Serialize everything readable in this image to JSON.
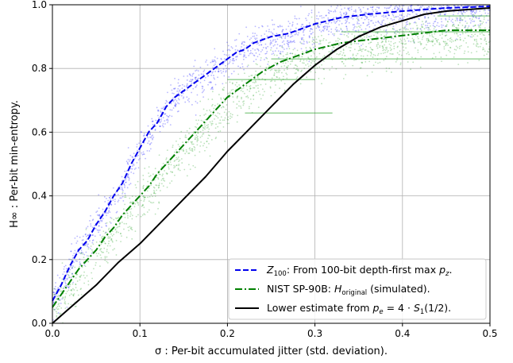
{
  "chart_data": {
    "type": "line",
    "xlabel": "σ : Per-bit accumulated jitter (std. deviation).",
    "ylabel": "H∞ : Per-bit min-entropy.",
    "xlim": [
      0.0,
      0.5
    ],
    "ylim": [
      0.0,
      1.0
    ],
    "x_ticks": [
      "0.0",
      "0.1",
      "0.2",
      "0.3",
      "0.4",
      "0.5"
    ],
    "y_ticks": [
      "0.0",
      "0.2",
      "0.4",
      "0.6",
      "0.8",
      "1.0"
    ],
    "grid": true,
    "legend_position": "lower-right",
    "series": [
      {
        "name": "Z100: From 100-bit depth-first max pz.",
        "color": "#0000ee",
        "style": "dashed",
        "x": [
          0.0,
          0.01,
          0.02,
          0.03,
          0.04,
          0.05,
          0.06,
          0.07,
          0.08,
          0.09,
          0.1,
          0.11,
          0.12,
          0.13,
          0.14,
          0.15,
          0.16,
          0.17,
          0.18,
          0.19,
          0.2,
          0.21,
          0.22,
          0.23,
          0.24,
          0.25,
          0.27,
          0.3,
          0.33,
          0.36,
          0.4,
          0.45,
          0.5
        ],
        "y": [
          0.07,
          0.12,
          0.18,
          0.23,
          0.26,
          0.31,
          0.35,
          0.4,
          0.44,
          0.5,
          0.55,
          0.6,
          0.63,
          0.68,
          0.71,
          0.73,
          0.75,
          0.77,
          0.79,
          0.81,
          0.83,
          0.85,
          0.86,
          0.88,
          0.89,
          0.9,
          0.91,
          0.94,
          0.96,
          0.97,
          0.98,
          0.99,
          0.995
        ]
      },
      {
        "name": "NIST SP-90B: Horiginal (simulated).",
        "color": "#008000",
        "style": "dashdot",
        "x": [
          0.0,
          0.01,
          0.02,
          0.03,
          0.04,
          0.05,
          0.06,
          0.07,
          0.08,
          0.09,
          0.1,
          0.11,
          0.12,
          0.13,
          0.14,
          0.15,
          0.16,
          0.17,
          0.18,
          0.19,
          0.2,
          0.22,
          0.24,
          0.26,
          0.28,
          0.3,
          0.33,
          0.36,
          0.39,
          0.42,
          0.45,
          0.5
        ],
        "y": [
          0.05,
          0.09,
          0.13,
          0.17,
          0.2,
          0.23,
          0.27,
          0.3,
          0.34,
          0.37,
          0.4,
          0.43,
          0.47,
          0.5,
          0.53,
          0.56,
          0.59,
          0.62,
          0.65,
          0.68,
          0.71,
          0.75,
          0.79,
          0.82,
          0.84,
          0.86,
          0.88,
          0.89,
          0.9,
          0.91,
          0.92,
          0.92
        ]
      },
      {
        "name": "Lower estimate from pe = 4 · S1(1/2).",
        "color": "#000000",
        "style": "solid",
        "x": [
          0.0,
          0.025,
          0.05,
          0.075,
          0.1,
          0.125,
          0.15,
          0.175,
          0.2,
          0.225,
          0.25,
          0.275,
          0.3,
          0.325,
          0.35,
          0.375,
          0.4,
          0.425,
          0.45,
          0.475,
          0.5
        ],
        "y": [
          0.0,
          0.06,
          0.12,
          0.19,
          0.25,
          0.32,
          0.39,
          0.46,
          0.54,
          0.61,
          0.68,
          0.75,
          0.81,
          0.86,
          0.9,
          0.93,
          0.95,
          0.97,
          0.98,
          0.985,
          0.99
        ]
      }
    ],
    "scatter_series": [
      {
        "color": "#3333ff",
        "description_ref": 0
      },
      {
        "color": "#22a022",
        "description_ref": 1
      }
    ]
  },
  "legend": {
    "z100": {
      "sym": "Z",
      "sub": "100",
      "text": ": From 100-bit depth-first max ",
      "tail_sym": "p",
      "tail_sub": "z",
      "end": "."
    },
    "nist": {
      "text": "NIST SP-90B: ",
      "sym": "H",
      "sub": "original",
      "end": " (simulated)."
    },
    "lower": {
      "text": "Lower estimate from ",
      "sym": "p",
      "sub": "e",
      "rest": " = 4 · ",
      "sym2": "S",
      "sub2": "1",
      "end": "(1/2)."
    }
  }
}
